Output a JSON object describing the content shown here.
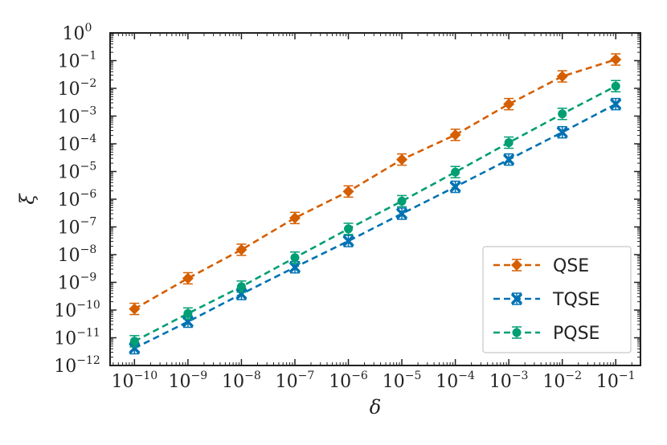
{
  "chart_data": {
    "type": "line",
    "title": "",
    "xlabel": "δ",
    "ylabel": "ξ",
    "xscale": "log",
    "yscale": "log",
    "xlim": [
      3.5e-11,
      0.29
    ],
    "ylim": [
      1e-12,
      1
    ],
    "x": [
      1e-10,
      1e-09,
      1e-08,
      1e-07,
      1e-06,
      1e-05,
      0.0001,
      0.001,
      0.01,
      0.1
    ],
    "xtick_labels": [
      {
        "base": "10",
        "exp": "−10"
      },
      {
        "base": "10",
        "exp": "−9"
      },
      {
        "base": "10",
        "exp": "−8"
      },
      {
        "base": "10",
        "exp": "−7"
      },
      {
        "base": "10",
        "exp": "−6"
      },
      {
        "base": "10",
        "exp": "−5"
      },
      {
        "base": "10",
        "exp": "−4"
      },
      {
        "base": "10",
        "exp": "−3"
      },
      {
        "base": "10",
        "exp": "−2"
      },
      {
        "base": "10",
        "exp": "−1"
      }
    ],
    "ytick_labels": [
      {
        "base": "10",
        "exp": "0"
      },
      {
        "base": "10",
        "exp": "−1"
      },
      {
        "base": "10",
        "exp": "−2"
      },
      {
        "base": "10",
        "exp": "−3"
      },
      {
        "base": "10",
        "exp": "−4"
      },
      {
        "base": "10",
        "exp": "−5"
      },
      {
        "base": "10",
        "exp": "−6"
      },
      {
        "base": "10",
        "exp": "−7"
      },
      {
        "base": "10",
        "exp": "−8"
      },
      {
        "base": "10",
        "exp": "−9"
      },
      {
        "base": "10",
        "exp": "−10"
      },
      {
        "base": "10",
        "exp": "−11"
      },
      {
        "base": "10",
        "exp": "−12"
      }
    ],
    "series": [
      {
        "name": "QSE",
        "color": "#d55e00",
        "marker": "diamond",
        "linestyle": "dashed",
        "values": [
          1.1e-10,
          1.4e-09,
          1.5e-08,
          2.1e-07,
          1.9e-06,
          2.7e-05,
          0.00021,
          0.0027,
          0.027,
          0.11
        ],
        "error_bars": true
      },
      {
        "name": "TQSE",
        "color": "#0072b2",
        "marker": "x",
        "linestyle": "dashed",
        "values": [
          4.2e-12,
          3.8e-11,
          3.8e-10,
          3.5e-09,
          3.1e-08,
          3e-07,
          2.8e-06,
          2.7e-05,
          0.00026,
          0.0027
        ],
        "error_bars": true
      },
      {
        "name": "PQSE",
        "color": "#009e73",
        "marker": "circle",
        "linestyle": "dashed",
        "values": [
          7.5e-12,
          7.5e-11,
          7e-10,
          7.8e-09,
          8.5e-08,
          8.5e-07,
          9.5e-06,
          0.00011,
          0.0012,
          0.012
        ],
        "error_bars": true
      }
    ],
    "legend": {
      "position": "lower-right"
    },
    "grid": false
  }
}
